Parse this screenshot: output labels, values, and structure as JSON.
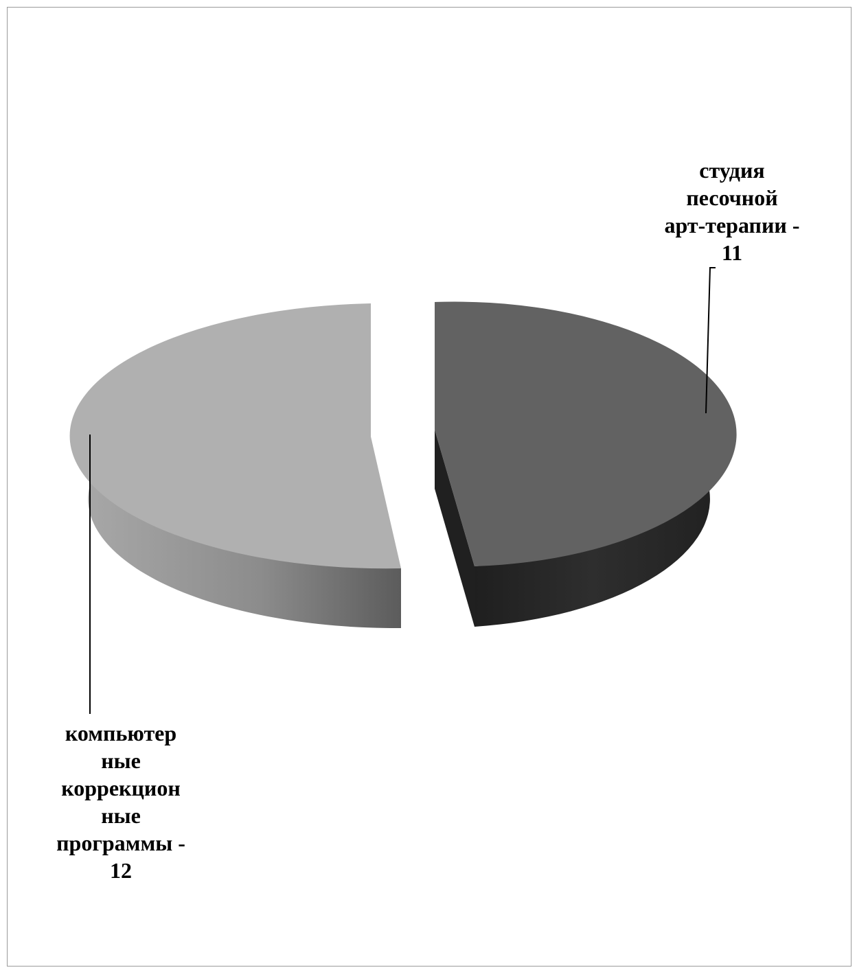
{
  "chart_data": {
    "type": "pie",
    "title": "",
    "style": "3d-exploded",
    "legend": "none",
    "slices": [
      {
        "label_lines": [
          "студия",
          "песочной",
          "арт-терапии -",
          "11"
        ],
        "value": 11,
        "top_color": "#626262",
        "side_color": "#262626"
      },
      {
        "label_lines": [
          "компьютер",
          "ные",
          "коррекцион",
          "ные",
          "программы -",
          "12"
        ],
        "value": 12,
        "top_color": "#b0b0b0",
        "side_color": "#8e8e8e"
      }
    ]
  }
}
